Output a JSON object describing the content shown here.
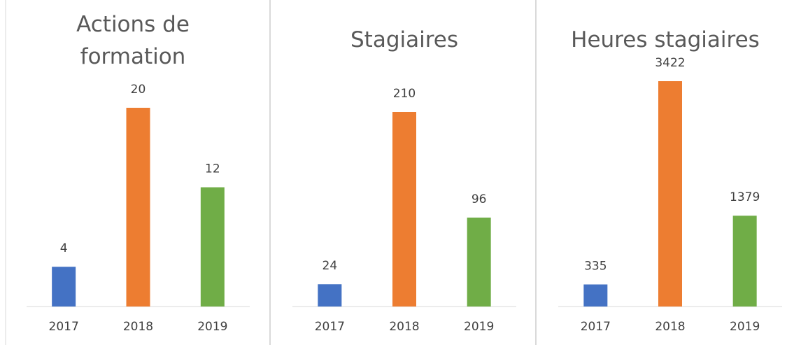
{
  "chart_data": [
    {
      "type": "bar",
      "title": "Actions de formation",
      "categories": [
        "2017",
        "2018",
        "2019"
      ],
      "values": [
        4,
        20,
        12
      ],
      "colors": [
        "#4472c4",
        "#ed7d31",
        "#70ad47"
      ]
    },
    {
      "type": "bar",
      "title": "Stagiaires",
      "categories": [
        "2017",
        "2018",
        "2019"
      ],
      "values": [
        24,
        210,
        96
      ],
      "colors": [
        "#4472c4",
        "#ed7d31",
        "#70ad47"
      ]
    },
    {
      "type": "bar",
      "title": "Heures stagiaires",
      "categories": [
        "2017",
        "2018",
        "2019"
      ],
      "values": [
        335,
        3422,
        1379
      ],
      "colors": [
        "#4472c4",
        "#ed7d31",
        "#70ad47"
      ]
    }
  ]
}
